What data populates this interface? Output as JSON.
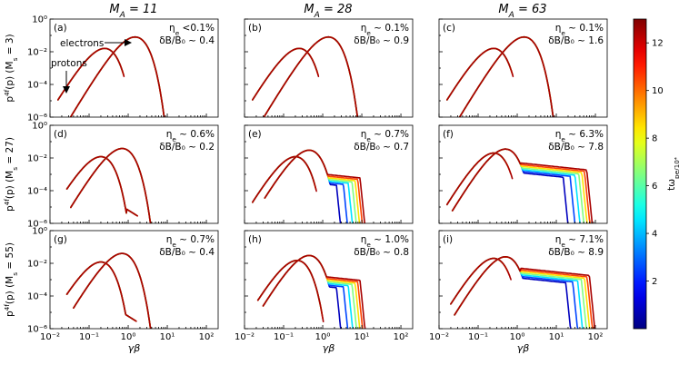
{
  "chart_data": {
    "type": "line",
    "title": "",
    "column_titles": [
      "M_A = 11",
      "M_A = 28",
      "M_A = 63"
    ],
    "row_ylabels": [
      "p^4f(p) (M_s = 3)",
      "p^4f(p) (M_s = 27)",
      "p^4f(p) (M_s = 55)"
    ],
    "xlabel": "γβ",
    "xlim": [
      0.01,
      200
    ],
    "ylim": [
      1e-06,
      1
    ],
    "xscale": "log",
    "yscale": "log",
    "xtick_labels": [
      "10⁻²",
      "10⁻¹",
      "10⁰",
      "10¹",
      "10²"
    ],
    "ytick_labels": [
      "10⁻⁶",
      "10⁻⁴",
      "10⁻²",
      "10⁰"
    ],
    "colorbar": {
      "label": "tω_pe/10⁴",
      "range": [
        0,
        13
      ],
      "tick_labels": [
        "2",
        "4",
        "6",
        "8",
        "10",
        "12"
      ],
      "colormap": "jet"
    },
    "annotations": {
      "electrons_label": "electrons",
      "protons_label": "protons"
    },
    "time_snapshots": [
      0.8,
      2.5,
      4.5,
      6.5,
      8.5,
      10.5,
      12.5
    ],
    "panels": [
      {
        "label": "(a)",
        "eta_text": "η_e <0.1%",
        "db_text": "δB/B₀ ~ 0.4",
        "proton": {
          "x0": 0.016,
          "peak_x": 0.25,
          "peak_y": 0.016,
          "xc": 0.68,
          "hook": false
        },
        "electron": {
          "x0": 0.028,
          "peak_x": 1.5,
          "peak_y": 0.08,
          "xc": 12,
          "hook": false
        },
        "tail_spread": 0.22,
        "plateau": null
      },
      {
        "label": "(b)",
        "eta_text": "η_e ~ 0.1%",
        "db_text": "δB/B₀ ~ 0.9",
        "proton": {
          "x0": 0.016,
          "peak_x": 0.25,
          "peak_y": 0.016,
          "xc": 0.68,
          "hook": false
        },
        "electron": {
          "x0": 0.028,
          "peak_x": 1.4,
          "peak_y": 0.08,
          "xc": 12,
          "hook": false
        },
        "tail_spread": 0.3,
        "plateau": null
      },
      {
        "label": "(c)",
        "eta_text": "η_e ~ 0.1%",
        "db_text": "δB/B₀ ~ 1.6",
        "proton": {
          "x0": 0.016,
          "peak_x": 0.25,
          "peak_y": 0.016,
          "xc": 0.68,
          "hook": false
        },
        "electron": {
          "x0": 0.028,
          "peak_x": 1.5,
          "peak_y": 0.08,
          "xc": 12,
          "hook": false
        },
        "tail_spread": 0.35,
        "plateau": null
      },
      {
        "label": "(d)",
        "eta_text": "η_e ~ 0.6%",
        "db_text": "δB/B₀ ~ 0.2",
        "proton": {
          "x0": 0.027,
          "peak_x": 0.2,
          "peak_y": 0.012,
          "xc": 1.5,
          "hook": true
        },
        "electron": {
          "x0": 0.034,
          "peak_x": 0.7,
          "peak_y": 0.038,
          "xc": 10,
          "hook": false
        },
        "tail_spread": 0.2,
        "plateau": null
      },
      {
        "label": "(e)",
        "eta_text": "η_e ~ 0.7%",
        "db_text": "δB/B₀ ~ 0.7",
        "proton": {
          "x0": 0.016,
          "peak_x": 0.2,
          "peak_y": 0.012,
          "xc": 0.6,
          "hook": false
        },
        "electron": {
          "x0": 0.033,
          "peak_x": 0.45,
          "peak_y": 0.03,
          "xc": 10,
          "hook": false
        },
        "tail_spread": 0.3,
        "plateau": {
          "start": 1.2,
          "end": 9,
          "level": 0.001,
          "cut": 12
        }
      },
      {
        "label": "(f)",
        "eta_text": "η_e ~ 6.3%",
        "db_text": "δB/B₀ ~ 7.8",
        "proton": {
          "x0": 0.016,
          "peak_x": 0.25,
          "peak_y": 0.02,
          "xc": 0.65,
          "hook": false
        },
        "electron": {
          "x0": 0.022,
          "peak_x": 0.5,
          "peak_y": 0.035,
          "xc": 3,
          "hook": false
        },
        "tail_spread": 1.0,
        "plateau": {
          "start": 1.2,
          "end": 60,
          "level": 0.005,
          "cut": 120
        }
      },
      {
        "label": "(g)",
        "eta_text": "η_e ~ 0.7%",
        "db_text": "δB/B₀ ~ 0.4",
        "proton": {
          "x0": 0.027,
          "peak_x": 0.2,
          "peak_y": 0.012,
          "xc": 1.4,
          "hook": true
        },
        "electron": {
          "x0": 0.04,
          "peak_x": 0.7,
          "peak_y": 0.04,
          "xc": 12,
          "hook": false
        },
        "tail_spread": 0.2,
        "plateau": null
      },
      {
        "label": "(h)",
        "eta_text": "η_e ~ 1.0%",
        "db_text": "δB/B₀ ~ 0.8",
        "proton": {
          "x0": 0.022,
          "peak_x": 0.22,
          "peak_y": 0.015,
          "xc": 0.9,
          "hook": false
        },
        "electron": {
          "x0": 0.03,
          "peak_x": 0.45,
          "peak_y": 0.03,
          "xc": 8,
          "hook": false
        },
        "tail_spread": 0.35,
        "plateau": {
          "start": 1.2,
          "end": 9,
          "level": 0.0015,
          "cut": 14
        }
      },
      {
        "label": "(i)",
        "eta_text": "η_e ~ 7.1%",
        "db_text": "δB/B₀ ~ 8.9",
        "proton": {
          "x0": 0.02,
          "peak_x": 0.25,
          "peak_y": 0.02,
          "xc": 0.6,
          "hook": false
        },
        "electron": {
          "x0": 0.025,
          "peak_x": 0.5,
          "peak_y": 0.025,
          "xc": 3,
          "hook": false
        },
        "tail_spread": 1.0,
        "plateau": {
          "start": 1.2,
          "end": 70,
          "level": 0.005,
          "cut": 130
        }
      }
    ]
  }
}
